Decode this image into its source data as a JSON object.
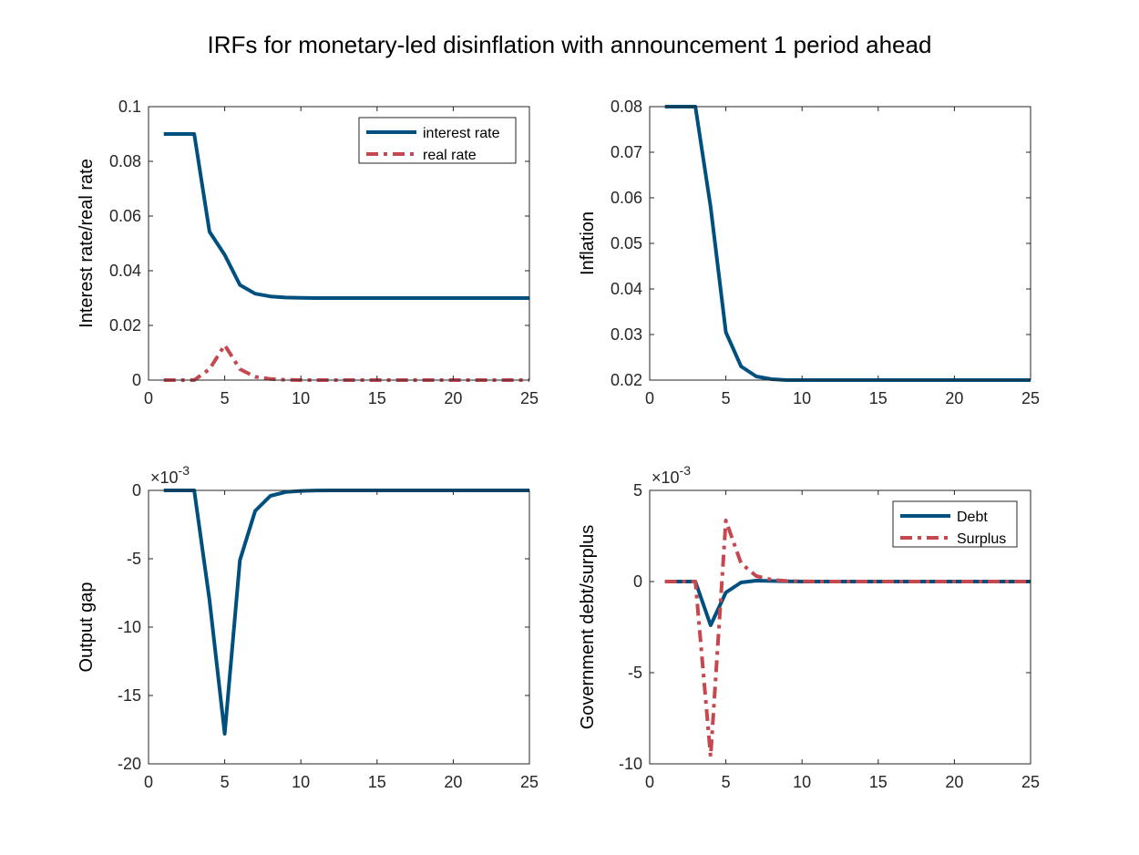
{
  "figure": {
    "title": "IRFs for monetary-led disinflation with announcement 1 period ahead",
    "colors": {
      "blue": "#00507f",
      "red": "#c5474f",
      "axis": "#262626"
    }
  },
  "chart_data": [
    {
      "type": "line",
      "ylabel": "Interest rate/real rate",
      "xlim": [
        0,
        25
      ],
      "ylim": [
        0,
        0.1
      ],
      "xticks": [
        0,
        5,
        10,
        15,
        20,
        25
      ],
      "xtick_labels": [
        "0",
        "5",
        "10",
        "15",
        "20",
        "25"
      ],
      "yticks": [
        0,
        0.02,
        0.04,
        0.06,
        0.08,
        0.1
      ],
      "ytick_labels": [
        "0",
        "0.02",
        "0.04",
        "0.06",
        "0.08",
        "0.1"
      ],
      "exponent_label": "",
      "legend": "top-right",
      "x": [
        1,
        2,
        3,
        4,
        5,
        6,
        7,
        8,
        9,
        10,
        11,
        12,
        13,
        14,
        15,
        16,
        17,
        18,
        19,
        20,
        21,
        22,
        23,
        24,
        25
      ],
      "series": [
        {
          "name": "interest rate",
          "style": "solid",
          "color": "#00507f",
          "values": [
            0.09,
            0.09,
            0.09,
            0.0543,
            0.0458,
            0.0348,
            0.0316,
            0.0306,
            0.0302,
            0.0301,
            0.03,
            0.03,
            0.03,
            0.03,
            0.03,
            0.03,
            0.03,
            0.03,
            0.03,
            0.03,
            0.03,
            0.03,
            0.03,
            0.03,
            0.03
          ]
        },
        {
          "name": "real rate",
          "style": "dashdot",
          "color": "#c5474f",
          "values": [
            0,
            0,
            0,
            0.004,
            0.0128,
            0.004,
            0.0012,
            0.0004,
            0.0001,
            0,
            0,
            0,
            0,
            0,
            0,
            0,
            0,
            0,
            0,
            0,
            0,
            0,
            0,
            0,
            0
          ]
        }
      ]
    },
    {
      "type": "line",
      "ylabel": "Inflation",
      "xlim": [
        0,
        25
      ],
      "ylim": [
        0.02,
        0.08
      ],
      "xticks": [
        0,
        5,
        10,
        15,
        20,
        25
      ],
      "xtick_labels": [
        "0",
        "5",
        "10",
        "15",
        "20",
        "25"
      ],
      "yticks": [
        0.02,
        0.03,
        0.04,
        0.05,
        0.06,
        0.07,
        0.08
      ],
      "ytick_labels": [
        "0.02",
        "0.03",
        "0.04",
        "0.05",
        "0.06",
        "0.07",
        "0.08"
      ],
      "exponent_label": "",
      "legend": "none",
      "x": [
        1,
        2,
        3,
        4,
        5,
        6,
        7,
        8,
        9,
        10,
        11,
        12,
        13,
        14,
        15,
        16,
        17,
        18,
        19,
        20,
        21,
        22,
        23,
        24,
        25
      ],
      "series": [
        {
          "style": "solid",
          "color": "#00507f",
          "values": [
            0.08,
            0.08,
            0.08,
            0.058,
            0.0305,
            0.023,
            0.0208,
            0.0202,
            0.02,
            0.02,
            0.02,
            0.02,
            0.02,
            0.02,
            0.02,
            0.02,
            0.02,
            0.02,
            0.02,
            0.02,
            0.02,
            0.02,
            0.02,
            0.02,
            0.02
          ]
        }
      ]
    },
    {
      "type": "line",
      "ylabel": "Output gap",
      "xlim": [
        0,
        25
      ],
      "ylim": [
        -20,
        0
      ],
      "xticks": [
        0,
        5,
        10,
        15,
        20,
        25
      ],
      "xtick_labels": [
        "0",
        "5",
        "10",
        "15",
        "20",
        "25"
      ],
      "yticks": [
        -20,
        -15,
        -10,
        -5,
        0
      ],
      "ytick_labels": [
        "-20",
        "-15",
        "-10",
        "-5",
        "0"
      ],
      "exponent_label": "×10",
      "exponent_power": "-3",
      "legend": "none",
      "x": [
        1,
        2,
        3,
        4,
        5,
        6,
        7,
        8,
        9,
        10,
        11,
        12,
        13,
        14,
        15,
        16,
        17,
        18,
        19,
        20,
        21,
        22,
        23,
        24,
        25
      ],
      "series": [
        {
          "style": "solid",
          "color": "#00507f",
          "values": [
            0,
            0,
            0,
            -8,
            -17.8,
            -5.1,
            -1.5,
            -0.4,
            -0.12,
            -0.04,
            -0.01,
            0,
            0,
            0,
            0,
            0,
            0,
            0,
            0,
            0,
            0,
            0,
            0,
            0,
            0
          ]
        }
      ]
    },
    {
      "type": "line",
      "ylabel": "Government debt/surplus",
      "xlim": [
        0,
        25
      ],
      "ylim": [
        -10,
        5
      ],
      "xticks": [
        0,
        5,
        10,
        15,
        20,
        25
      ],
      "xtick_labels": [
        "0",
        "5",
        "10",
        "15",
        "20",
        "25"
      ],
      "yticks": [
        -10,
        -5,
        0,
        5
      ],
      "ytick_labels": [
        "-10",
        "-5",
        "0",
        "5"
      ],
      "exponent_label": "×10",
      "exponent_power": "-3",
      "legend": "top-right",
      "x": [
        1,
        2,
        3,
        4,
        5,
        6,
        7,
        8,
        9,
        10,
        11,
        12,
        13,
        14,
        15,
        16,
        17,
        18,
        19,
        20,
        21,
        22,
        23,
        24,
        25
      ],
      "series": [
        {
          "name": "Debt",
          "style": "solid",
          "color": "#00507f",
          "values": [
            0,
            0,
            0,
            -2.4,
            -0.6,
            -0.05,
            0.05,
            0.03,
            0.01,
            0,
            0,
            0,
            0,
            0,
            0,
            0,
            0,
            0,
            0,
            0,
            0,
            0,
            0,
            0,
            0
          ]
        },
        {
          "name": "Surplus",
          "style": "dashdot",
          "color": "#c5474f",
          "values": [
            0,
            0,
            0,
            -9.6,
            3.35,
            1.0,
            0.3,
            0.1,
            0.03,
            0.01,
            0,
            0,
            0,
            0,
            0,
            0,
            0,
            0,
            0,
            0,
            0,
            0,
            0,
            0,
            0
          ]
        }
      ]
    }
  ]
}
